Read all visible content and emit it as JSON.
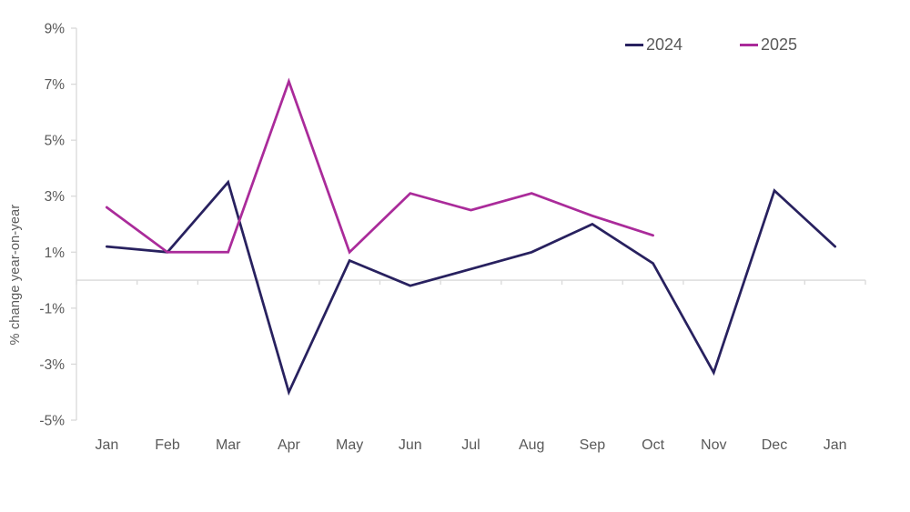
{
  "chart_data": {
    "type": "line",
    "categories": [
      "Jan",
      "Feb",
      "Mar",
      "Apr",
      "May",
      "Jun",
      "Jul",
      "Aug",
      "Sep",
      "Oct",
      "Nov",
      "Dec",
      "Jan"
    ],
    "series": [
      {
        "name": "2024",
        "color": "#28215f",
        "values": [
          1.2,
          1.0,
          3.5,
          -4.0,
          0.7,
          -0.2,
          0.4,
          1.0,
          2.0,
          0.6,
          -3.3,
          3.2,
          1.2
        ]
      },
      {
        "name": "2025",
        "color": "#aa2b9a",
        "values": [
          2.6,
          1.0,
          1.0,
          7.1,
          1.0,
          3.1,
          2.5,
          3.1,
          2.3,
          1.6,
          null,
          null,
          null
        ]
      }
    ],
    "title": "",
    "xlabel": "",
    "ylabel": "% change year-on-year",
    "ylim": [
      -5,
      9
    ],
    "ytick_step": 2,
    "ytick_labels": [
      "9%",
      "7%",
      "5%",
      "3%",
      "1%",
      "-1%",
      "-3%",
      "-5%"
    ],
    "grid": "zero-line-only",
    "legend_position": "top-right"
  },
  "colors": {
    "axis": "#d9d9d9",
    "text": "#595959",
    "background": "#ffffff",
    "series_2024": "#28215f",
    "series_2025": "#aa2b9a"
  }
}
